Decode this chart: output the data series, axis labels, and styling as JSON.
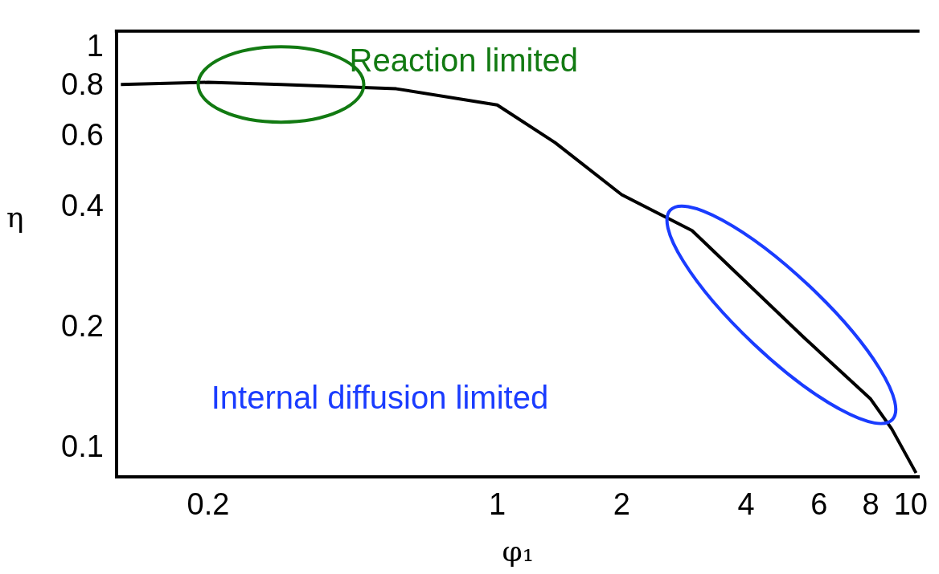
{
  "chart_data": {
    "type": "line",
    "xlabel": "φ₁",
    "ylabel": "η",
    "log": "xy",
    "grid": false,
    "legend": false,
    "marker": "none",
    "line_style": "solid",
    "x": [
      0.123,
      0.2,
      0.3,
      0.57,
      1,
      1.38,
      2,
      2.96,
      5.5,
      8,
      9,
      10.3
    ],
    "series": [
      {
        "color": "#000000",
        "values": [
          0.81,
          0.82,
          0.81,
          0.79,
          0.72,
          0.58,
          0.43,
          0.35,
          0.19,
          0.133,
          0.112,
          0.087
        ]
      }
    ],
    "xlim": [
      0.12,
      10.5
    ],
    "xticks": [
      0.2,
      1,
      2,
      4,
      6,
      8,
      10
    ],
    "ylim": [
      0.085,
      1.1
    ],
    "yticks": [
      0.1,
      0.2,
      0.4,
      0.6,
      0.8,
      1
    ],
    "annotations": [
      "Reaction limited",
      "Internal diffusion limited"
    ]
  }
}
